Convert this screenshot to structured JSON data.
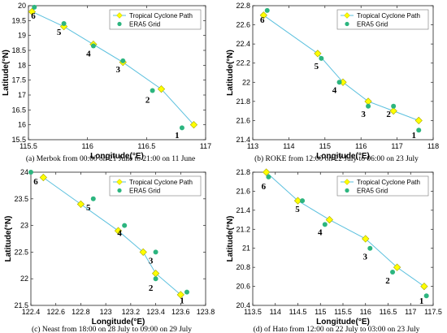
{
  "figure": {
    "colors": {
      "path": "#5bc0de",
      "diamond": "#ffff00",
      "diamond_edge": "#a6a600",
      "grid_marker": "#2cb57f"
    },
    "legend": {
      "path_label": "Tropical Cyclone Path",
      "grid_label": "ERA5 Grid"
    }
  },
  "chart_data": [
    {
      "type": "scatter",
      "caption": "(a) Merbok from 00:00 on 21 June to 21:00 on 11 June",
      "xlabel": "Longitude(°E)",
      "ylabel": "Latitude(°N)",
      "xlim": [
        115.5,
        117
      ],
      "ylim": [
        15.5,
        20
      ],
      "xticks": [
        "115.5",
        "116",
        "116.5",
        "117"
      ],
      "yticks": [
        "15.5",
        "16",
        "16.5",
        "17",
        "17.5",
        "18",
        "18.5",
        "19",
        "19.5",
        "20"
      ],
      "grid": false,
      "legend_position": "top-right",
      "series": [
        {
          "name": "Tropical Cyclone Path",
          "x": [
            116.9,
            116.625,
            116.3,
            116.05,
            115.8,
            115.53
          ],
          "y": [
            16.0,
            17.2,
            18.1,
            18.7,
            19.3,
            19.8
          ]
        },
        {
          "name": "ERA5 Grid",
          "x": [
            116.8,
            116.55,
            116.3,
            116.05,
            115.8,
            115.55
          ],
          "y": [
            15.9,
            17.15,
            18.15,
            18.65,
            19.4,
            19.95
          ]
        }
      ],
      "annotations": [
        "1",
        "2",
        "3",
        "4",
        "5",
        "6"
      ]
    },
    {
      "type": "scatter",
      "caption": "(b) ROKE from 12:00 on 22 July to 06:00 on 23 July",
      "xlabel": "Longitude(°E)",
      "ylabel": "Latitude(°N)",
      "xlim": [
        113,
        118
      ],
      "ylim": [
        21.4,
        22.8
      ],
      "xticks": [
        "113",
        "114",
        "115",
        "116",
        "117",
        "118"
      ],
      "yticks": [
        "21.4",
        "21.6",
        "21.8",
        "22",
        "22.2",
        "22.4",
        "22.6",
        "22.8"
      ],
      "grid": false,
      "legend_position": "top-right",
      "series": [
        {
          "name": "Tropical Cyclone Path",
          "x": [
            117.6,
            116.9,
            116.2,
            115.5,
            114.8,
            113.3
          ],
          "y": [
            21.6,
            21.7,
            21.8,
            22.0,
            22.3,
            22.7
          ]
        },
        {
          "name": "ERA5 Grid",
          "x": [
            117.6,
            116.9,
            116.2,
            115.4,
            114.9,
            113.4
          ],
          "y": [
            21.5,
            21.75,
            21.75,
            22.0,
            22.25,
            22.75
          ]
        }
      ],
      "annotations": [
        "1",
        "2",
        "3",
        "4",
        "5",
        "6"
      ]
    },
    {
      "type": "scatter",
      "caption": "(c) Neast from 18:00 on 28 July to 09:00 on 29 July",
      "xlabel": "Longitude(°E)",
      "ylabel": "Latitude(°N)",
      "xlim": [
        122.4,
        123.8
      ],
      "ylim": [
        21.5,
        24
      ],
      "xticks": [
        "122.4",
        "122.6",
        "122.8",
        "123",
        "123.2",
        "123.4",
        "123.6",
        "123.8"
      ],
      "yticks": [
        "21.5",
        "22",
        "22.5",
        "23",
        "23.5",
        "24"
      ],
      "grid": false,
      "legend_position": "top-right",
      "series": [
        {
          "name": "Tropical Cyclone Path",
          "x": [
            123.6,
            123.4,
            123.3,
            123.1,
            122.8,
            122.5
          ],
          "y": [
            21.7,
            22.1,
            22.5,
            22.9,
            23.4,
            23.9
          ]
        },
        {
          "name": "ERA5 Grid",
          "x": [
            123.65,
            123.4,
            123.4,
            123.15,
            122.9,
            122.4
          ],
          "y": [
            21.75,
            22.0,
            22.5,
            23.0,
            23.5,
            24.0
          ]
        }
      ],
      "annotations": [
        "1",
        "2",
        "3",
        "4",
        "5",
        "6"
      ]
    },
    {
      "type": "scatter",
      "caption": "(d) of Hato from 12:00 on 22 July to 03:00 on 23 July",
      "xlabel": "Longitude(°E)",
      "ylabel": "Latitude(°N)",
      "xlim": [
        113.5,
        117.5
      ],
      "ylim": [
        20.4,
        21.8
      ],
      "xticks": [
        "113.5",
        "114",
        "114.5",
        "115",
        "115.5",
        "116",
        "116.5",
        "117",
        "117.5"
      ],
      "yticks": [
        "20.4",
        "20.6",
        "20.8",
        "21",
        "21.2",
        "21.4",
        "21.6",
        "21.8"
      ],
      "grid": false,
      "legend_position": "top-right",
      "series": [
        {
          "name": "Tropical Cyclone Path",
          "x": [
            117.3,
            116.7,
            116.0,
            115.2,
            114.5,
            113.8
          ],
          "y": [
            20.6,
            20.8,
            21.1,
            21.3,
            21.5,
            21.8
          ]
        },
        {
          "name": "ERA5 Grid",
          "x": [
            117.35,
            116.6,
            116.1,
            115.1,
            114.6,
            113.85
          ],
          "y": [
            20.5,
            20.75,
            21.0,
            21.25,
            21.5,
            21.75
          ]
        }
      ],
      "annotations": [
        "1",
        "2",
        "3",
        "4",
        "5",
        "6"
      ]
    }
  ]
}
